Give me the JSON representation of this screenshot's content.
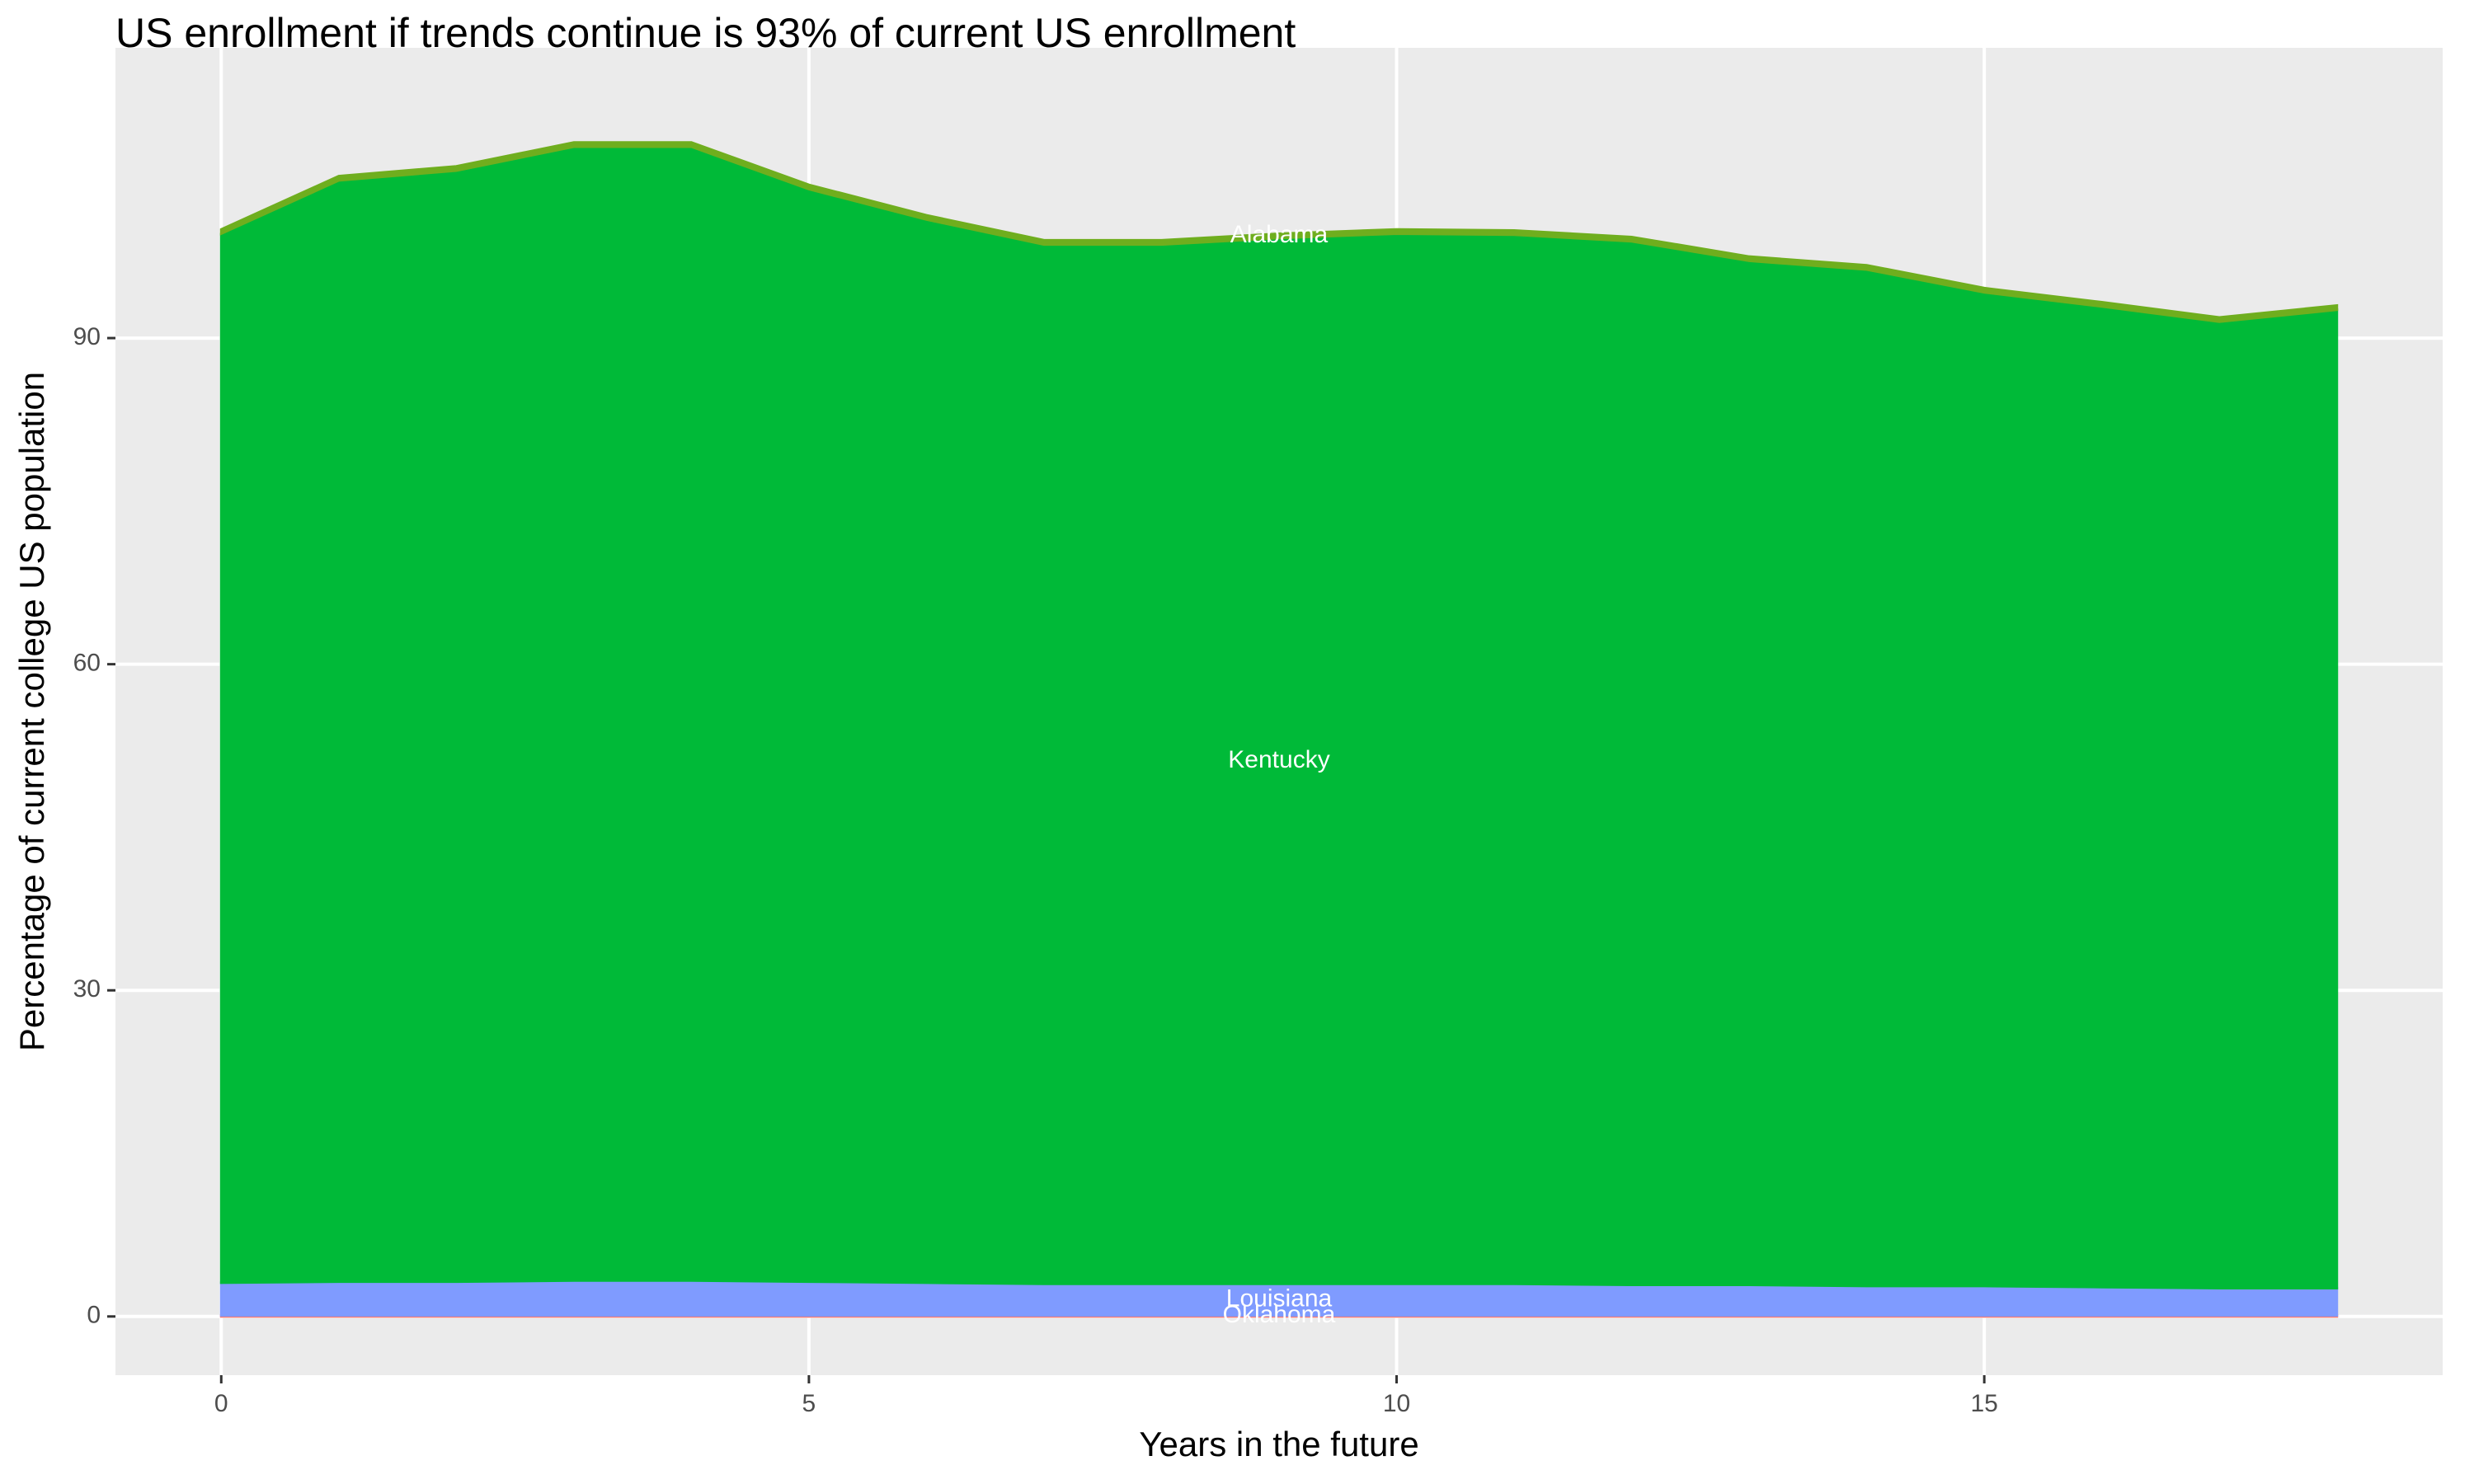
{
  "chart_data": {
    "type": "stacked_area",
    "title": "US enrollment if trends continue is 93% of current US enrollment",
    "x_label": "Years in the future",
    "y_label": "Percentage of current college US population",
    "x": [
      0,
      1,
      2,
      3,
      4,
      5,
      6,
      7,
      8,
      9,
      10,
      11,
      12,
      13,
      14,
      15,
      16,
      17,
      18
    ],
    "series": [
      {
        "name": "Oklahoma",
        "color": "#f8766d",
        "values": [
          0.1,
          0.1,
          0.1,
          0.1,
          0.1,
          0.1,
          0.1,
          0.1,
          0.1,
          0.1,
          0.1,
          0.1,
          0.1,
          0.1,
          0.1,
          0.1,
          0.1,
          0.1,
          0.1
        ]
      },
      {
        "name": "Louisiana",
        "color": "#7f9bff",
        "values": [
          3.0,
          3.1,
          3.1,
          3.2,
          3.2,
          3.1,
          3.0,
          2.9,
          2.9,
          2.9,
          2.9,
          2.9,
          2.8,
          2.8,
          2.7,
          2.7,
          2.6,
          2.5,
          2.5
        ]
      },
      {
        "name": "Kentucky",
        "color": "#00ba38",
        "values": [
          96.5,
          101.3,
          102.2,
          104.3,
          104.3,
          100.5,
          97.8,
          95.6,
          95.6,
          96.2,
          96.6,
          96.5,
          96.0,
          94.2,
          93.5,
          91.4,
          90.2,
          88.9,
          90.0
        ]
      },
      {
        "name": "Alabama",
        "color": "#6fae1e",
        "values": [
          0.4,
          0.4,
          0.4,
          0.4,
          0.4,
          0.4,
          0.4,
          0.4,
          0.4,
          0.4,
          0.4,
          0.4,
          0.4,
          0.4,
          0.4,
          0.4,
          0.4,
          0.4,
          0.4
        ]
      }
    ],
    "xlim": [
      -0.9,
      18.9
    ],
    "xticks": [
      0,
      5,
      10,
      15
    ],
    "ylim": [
      -5.4,
      116.7
    ],
    "yticks": [
      0,
      30,
      60,
      90
    ],
    "grid": true
  }
}
